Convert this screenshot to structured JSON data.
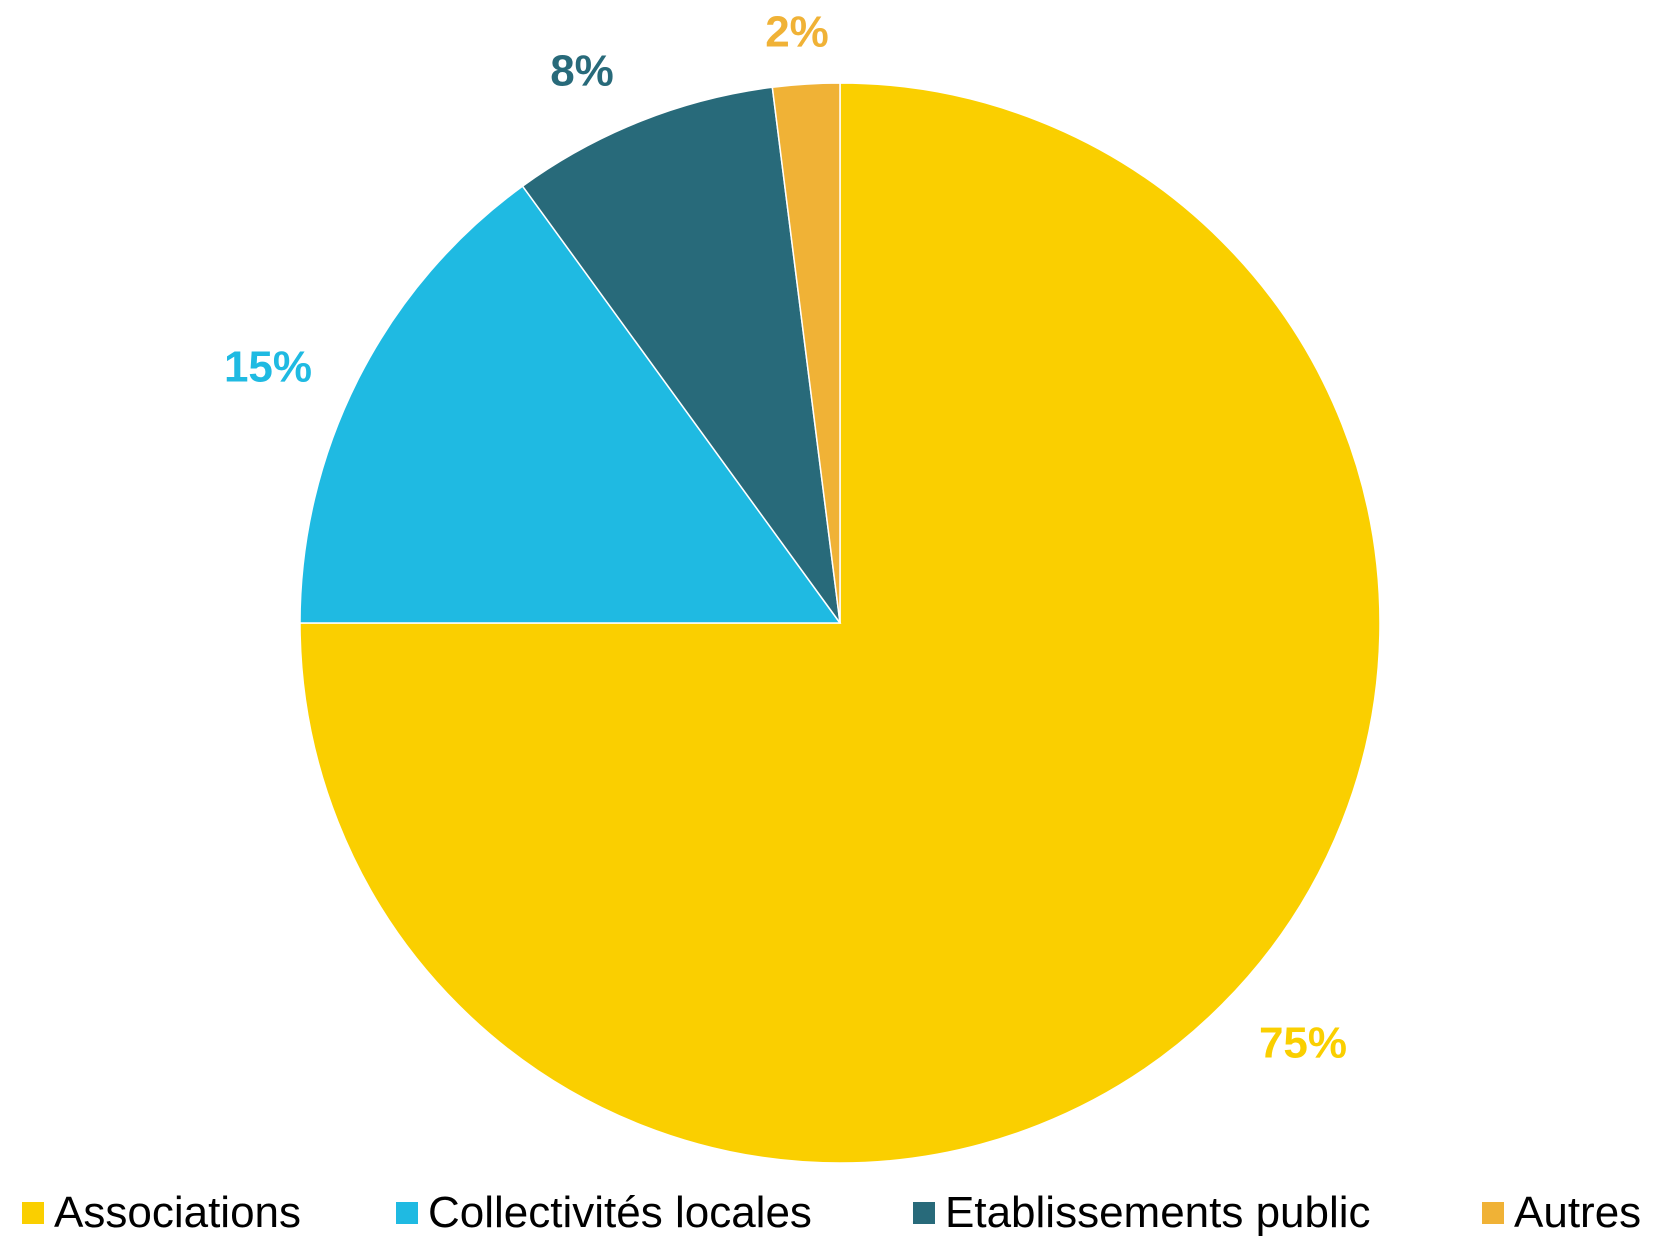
{
  "chart_data": {
    "type": "pie",
    "title": "",
    "legend_position": "bottom",
    "slices": [
      {
        "label": "Associations",
        "value": 75,
        "display": "75%",
        "color": "#FACF00"
      },
      {
        "label": "Collectivités locales",
        "value": 15,
        "display": "15%",
        "color": "#1FBAE2"
      },
      {
        "label": "Etablissements public",
        "value": 8,
        "display": "8%",
        "color": "#286A7A"
      },
      {
        "label": "Autres",
        "value": 2,
        "display": "2%",
        "color": "#F0B236"
      }
    ]
  }
}
